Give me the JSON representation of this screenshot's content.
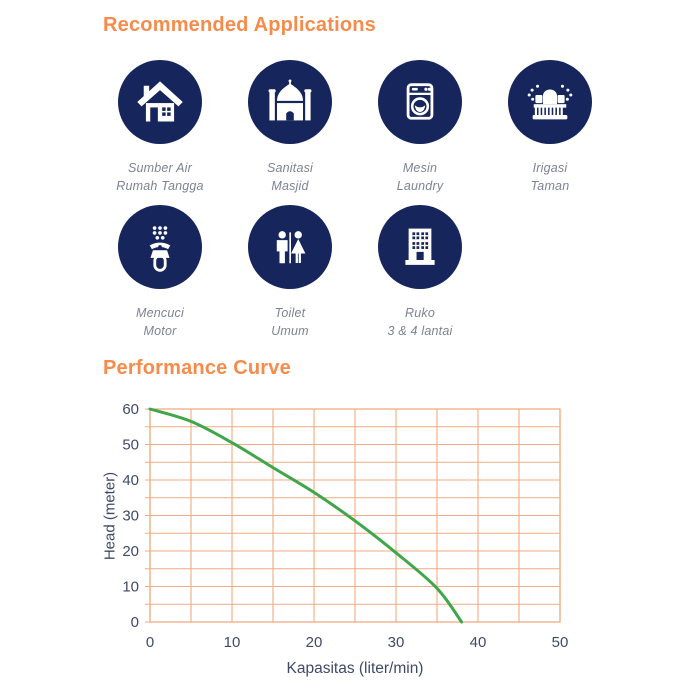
{
  "colors": {
    "orange": "#f78b4b",
    "navy": "#16255b",
    "label_gray": "#7f8294",
    "axis_text": "#3f4a68",
    "grid": "#f0ab80",
    "curve": "#3fa64a"
  },
  "applications": {
    "heading": "Recommended Applications",
    "items": [
      {
        "icon": "house-icon",
        "label": "Sumber Air\nRumah Tangga"
      },
      {
        "icon": "mosque-icon",
        "label": "Sanitasi\nMasjid"
      },
      {
        "icon": "washing-machine-icon",
        "label": "Mesin\nLaundry"
      },
      {
        "icon": "sprinkler-icon",
        "label": "Irigasi\nTaman"
      },
      {
        "icon": "scooter-icon",
        "label": "Mencuci\nMotor"
      },
      {
        "icon": "restroom-icon",
        "label": "Toilet\nUmum"
      },
      {
        "icon": "building-icon",
        "label": "Ruko\n3 & 4 lantai"
      }
    ]
  },
  "performance": {
    "heading": "Performance Curve"
  },
  "chart_data": {
    "type": "line",
    "title": "Performance Curve",
    "xlabel": "Kapasitas (liter/min)",
    "ylabel": "Head (meter)",
    "xlim": [
      0,
      50
    ],
    "ylim": [
      0,
      60
    ],
    "x_ticks": [
      0,
      10,
      20,
      30,
      40,
      50
    ],
    "y_ticks": [
      0,
      10,
      20,
      30,
      40,
      50,
      60
    ],
    "grid": true,
    "grid_step": 5,
    "legend": "none",
    "series": [
      {
        "name": "head-vs-capacity",
        "x": [
          0,
          5,
          10,
          15,
          20,
          25,
          30,
          35,
          38
        ],
        "y": [
          60,
          56.5,
          50.5,
          43.5,
          36.5,
          28.5,
          19.5,
          9.5,
          0
        ]
      }
    ],
    "colors": {
      "grid": "#f0ab80",
      "curve": "#3fa64a",
      "axis_text": "#3f4a68"
    }
  }
}
